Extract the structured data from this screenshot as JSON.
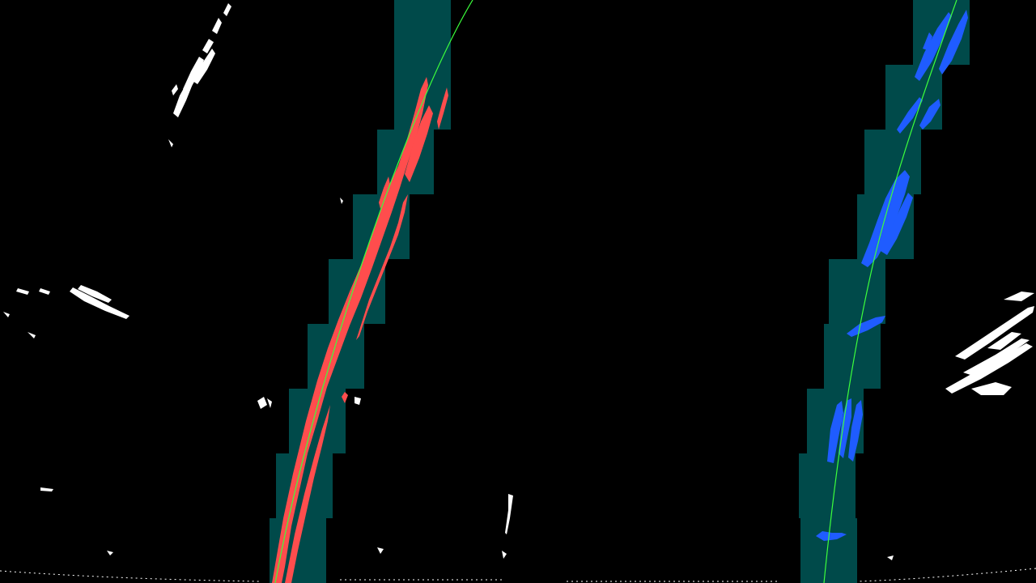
{
  "image": {
    "type": "lane-detection-sliding-window-visualization",
    "background_color": "#000000",
    "window_color": "#004a4a",
    "left_lane_pixel_color": "#ff4d4d",
    "right_lane_pixel_color": "#1f5cff",
    "fit_line_color": "#3cff3c",
    "noise_color": "#ffffff"
  }
}
